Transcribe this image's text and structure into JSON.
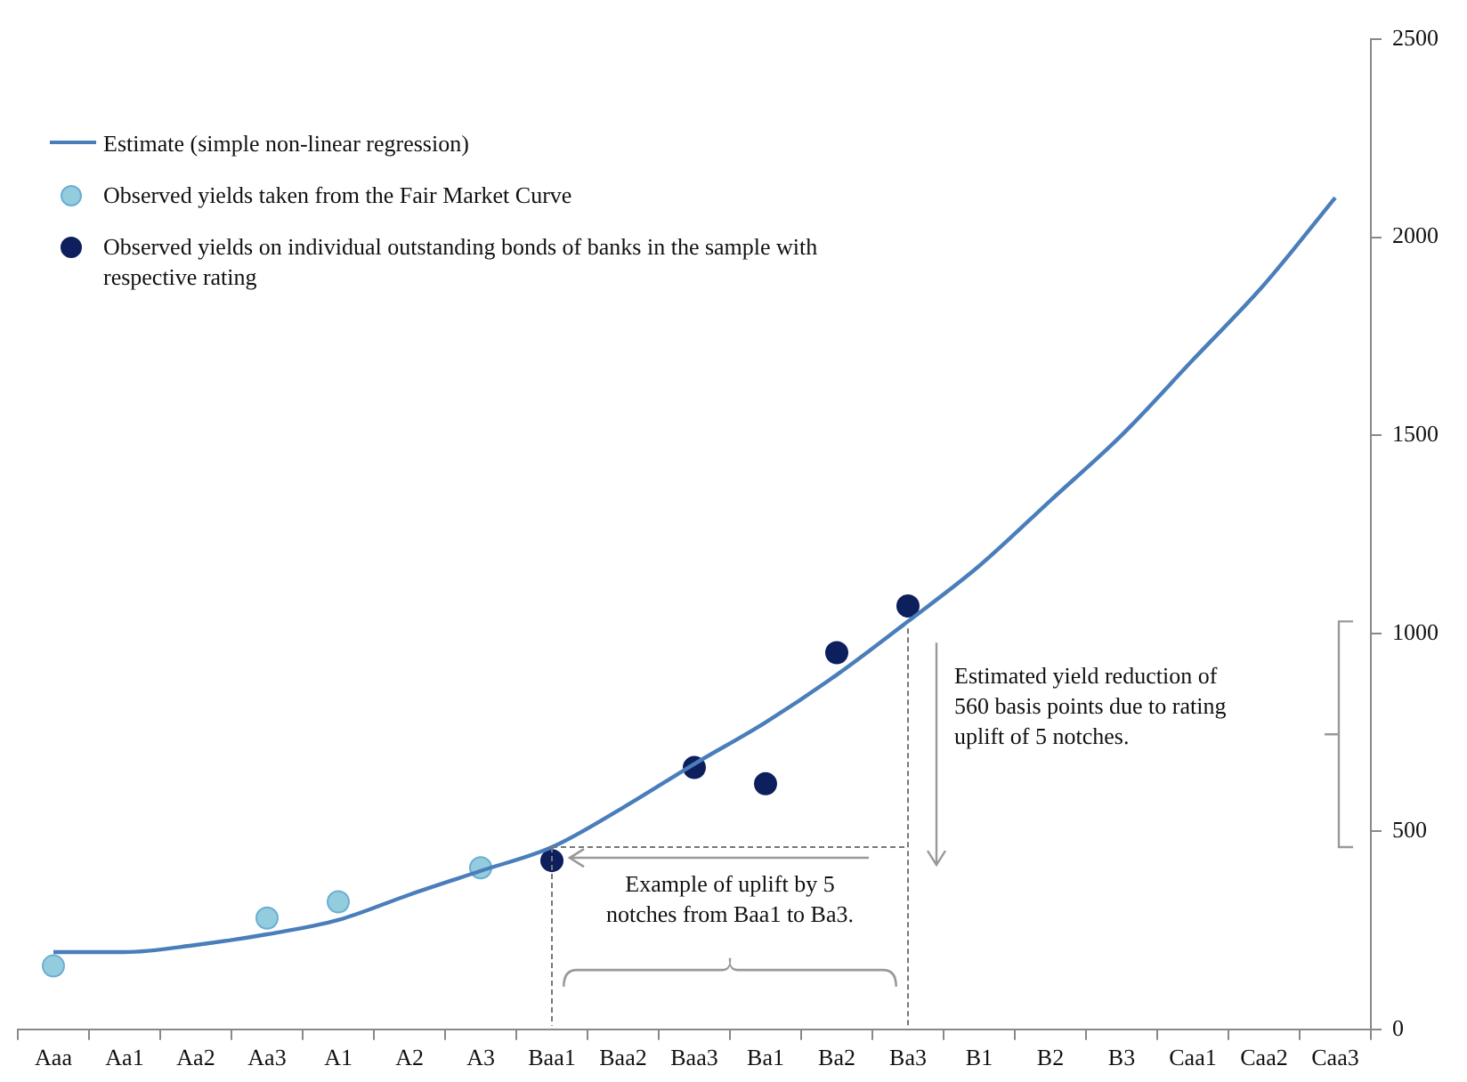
{
  "chart_data": {
    "type": "line",
    "categories": [
      "Aaa",
      "Aa1",
      "Aa2",
      "Aa3",
      "A1",
      "A2",
      "A3",
      "Baa1",
      "Baa2",
      "Baa3",
      "Ba1",
      "Ba2",
      "Ba3",
      "B1",
      "B2",
      "B3",
      "Caa1",
      "Caa2",
      "Caa3"
    ],
    "series": [
      {
        "name": "Estimate (simple non-linear regression)",
        "color": "#4a7ebb",
        "values": [
          195,
          195,
          213,
          240,
          276,
          340,
          400,
          460,
          560,
          670,
          775,
          895,
          1030,
          1170,
          1335,
          1500,
          1690,
          1880,
          2100
        ]
      },
      {
        "name": "Observed yields taken from the Fair Market Curve",
        "type": "scatter",
        "color": "#93cddd",
        "marker": "circle",
        "values": [
          160,
          null,
          null,
          281,
          322,
          null,
          408,
          null,
          null,
          null,
          null,
          null,
          null,
          null,
          null,
          null,
          null,
          null,
          null
        ]
      },
      {
        "name": "Observed yields on individual outstanding bonds of banks in the sample with respective rating",
        "type": "scatter",
        "color": "#0d1f5c",
        "marker": "circle",
        "values": [
          null,
          null,
          null,
          null,
          null,
          null,
          null,
          426,
          null,
          661,
          620,
          951,
          null,
          null,
          null,
          null,
          null,
          null,
          null
        ]
      },
      {
        "type": "scatter",
        "color": "#0d1f5c",
        "marker": "circle",
        "values": [
          null,
          null,
          null,
          null,
          null,
          null,
          null,
          null,
          null,
          null,
          null,
          null,
          1069,
          null,
          null,
          null,
          null,
          null,
          null
        ]
      }
    ],
    "ylim": [
      0,
      2500
    ],
    "yticks": [
      0,
      500,
      1000,
      1500,
      2000,
      2500
    ],
    "grid": false,
    "legend": "top left",
    "line_style": "solid",
    "annotations": [
      "Estimated yield reduction of 560 basis points due to rating uplift of 5 notches.",
      "Example of uplift by 5 notches from Baa1 to Ba3."
    ]
  }
}
